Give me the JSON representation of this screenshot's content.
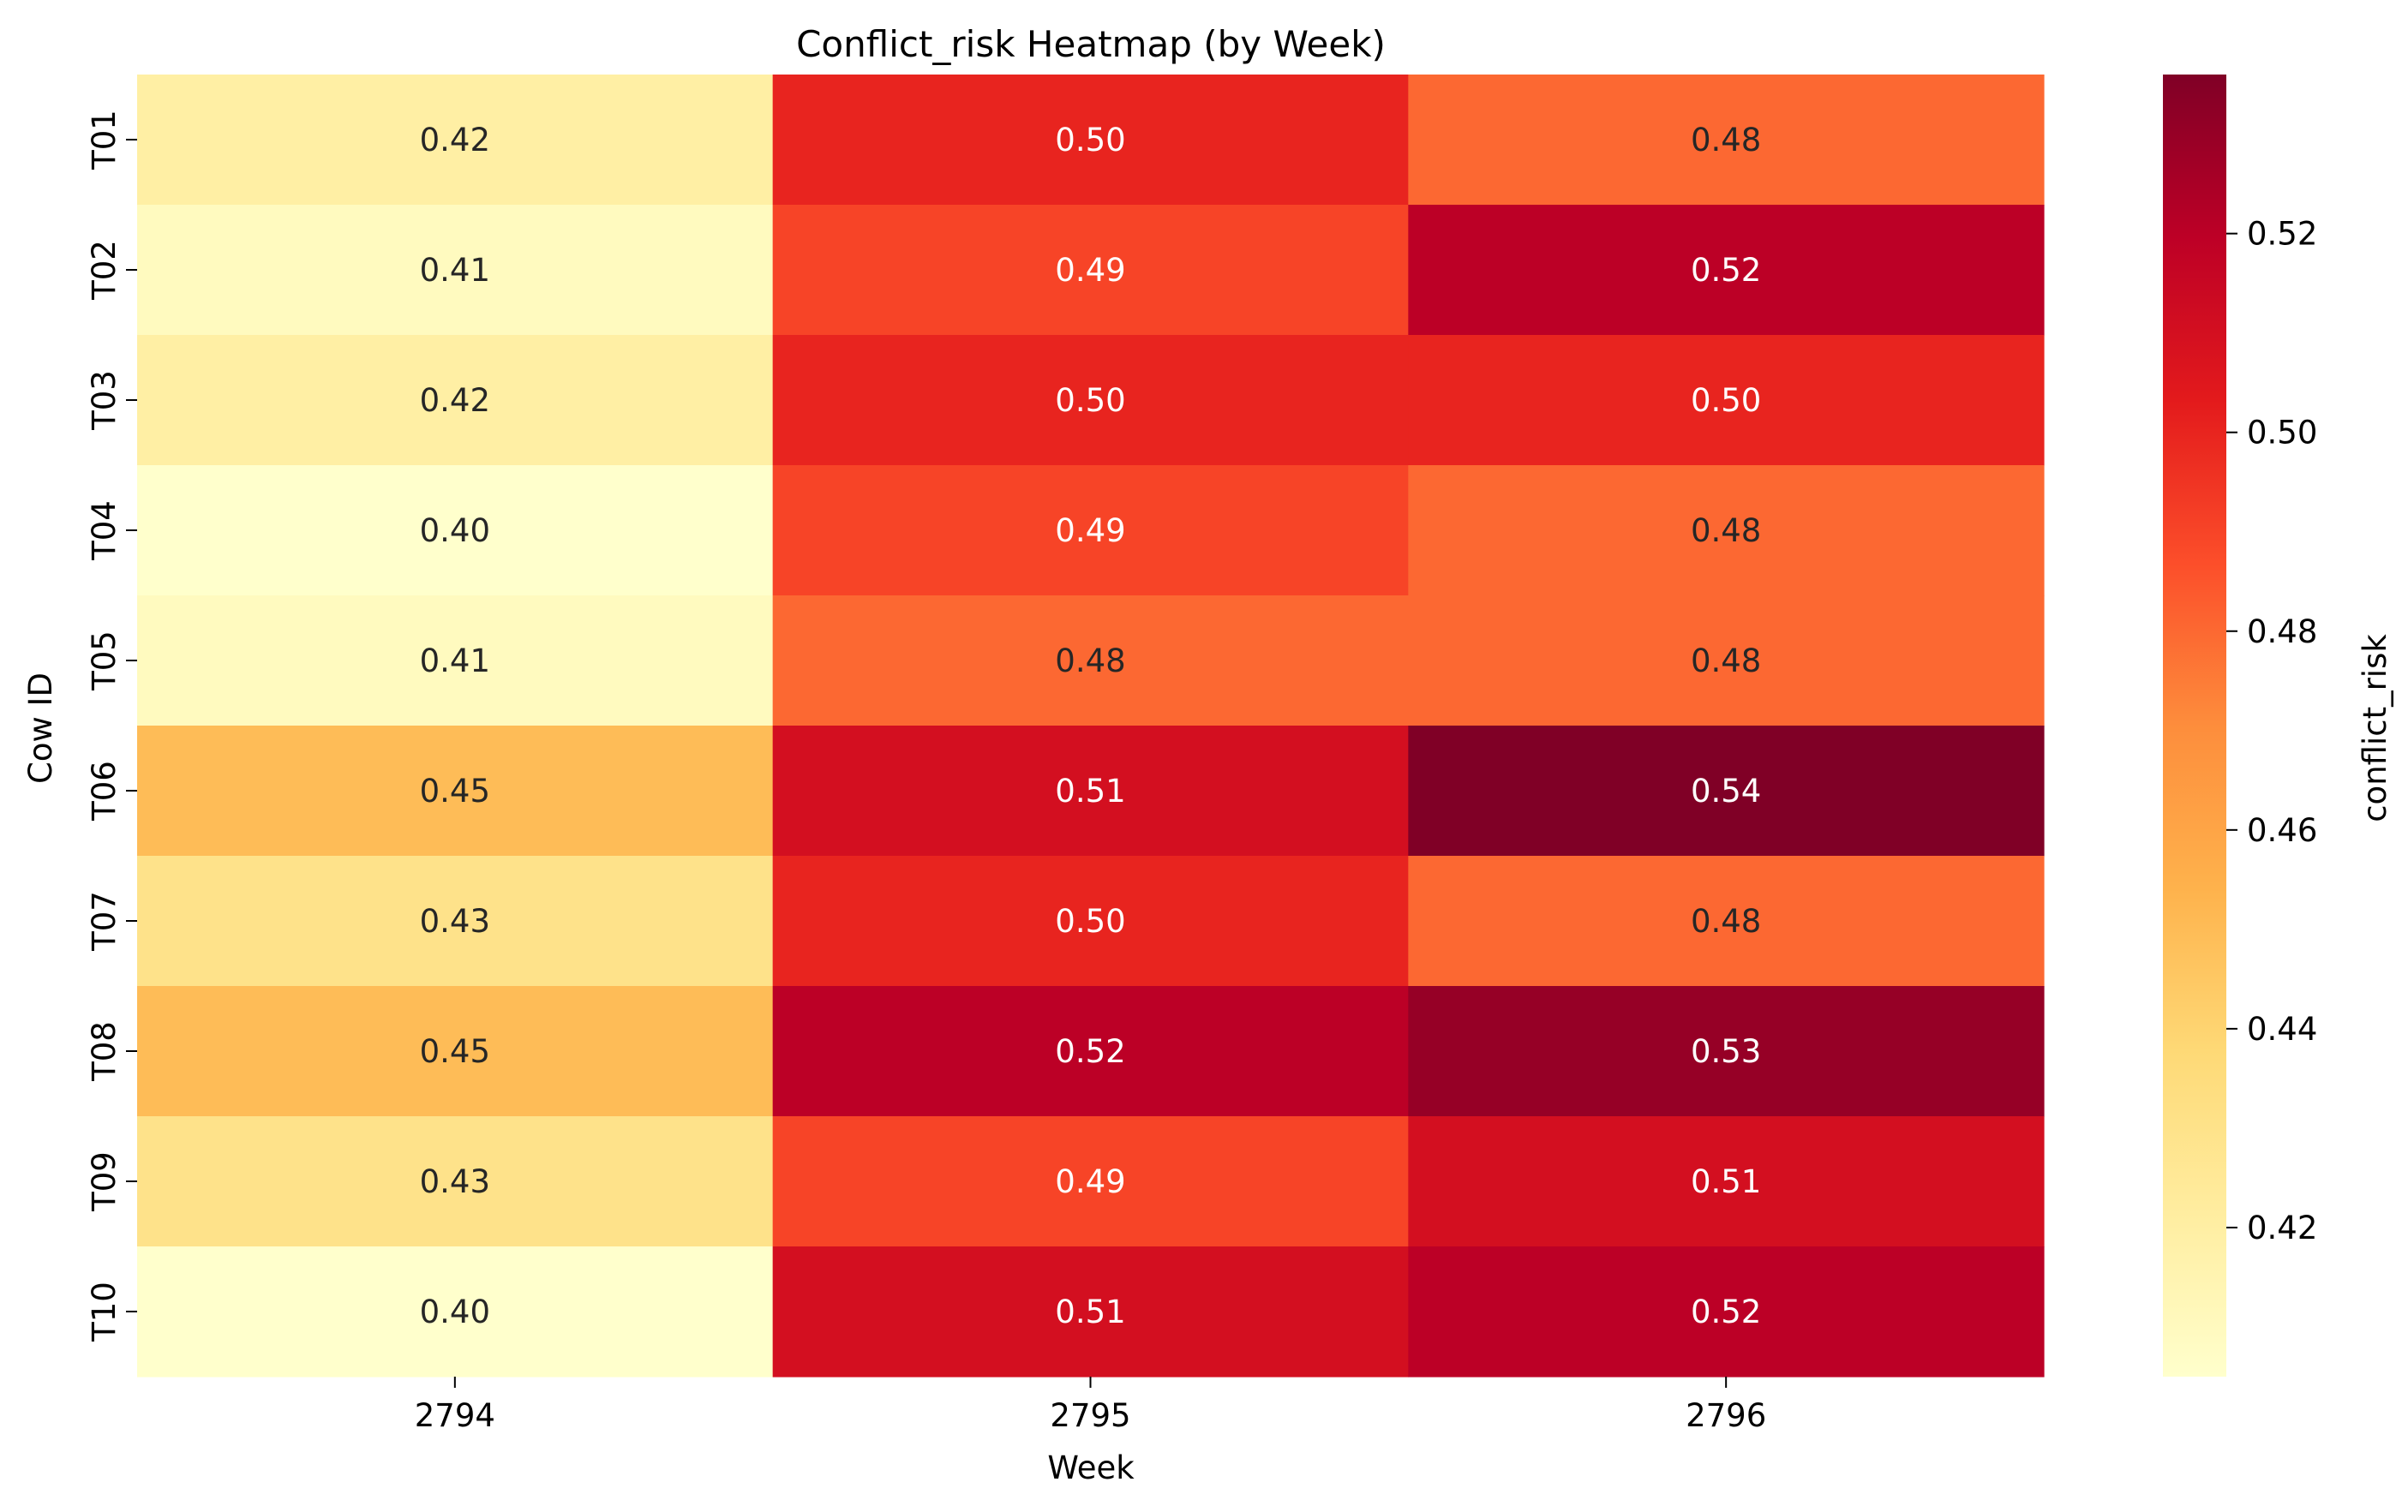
{
  "chart_data": {
    "type": "heatmap",
    "title": "Conflict_risk Heatmap (by Week)",
    "xlabel": "Week",
    "ylabel": "Cow ID",
    "x_categories": [
      "2794",
      "2795",
      "2796"
    ],
    "y_categories": [
      "T01",
      "T02",
      "T03",
      "T04",
      "T05",
      "T06",
      "T07",
      "T08",
      "T09",
      "T10"
    ],
    "values": [
      [
        0.42,
        0.5,
        0.48
      ],
      [
        0.41,
        0.49,
        0.52
      ],
      [
        0.42,
        0.5,
        0.5
      ],
      [
        0.4,
        0.49,
        0.48
      ],
      [
        0.41,
        0.48,
        0.48
      ],
      [
        0.45,
        0.51,
        0.54
      ],
      [
        0.43,
        0.5,
        0.48
      ],
      [
        0.45,
        0.52,
        0.53
      ],
      [
        0.43,
        0.49,
        0.51
      ],
      [
        0.4,
        0.51,
        0.52
      ]
    ],
    "cell_labels": [
      [
        "0.42",
        "0.50",
        "0.48"
      ],
      [
        "0.41",
        "0.49",
        "0.52"
      ],
      [
        "0.42",
        "0.50",
        "0.50"
      ],
      [
        "0.40",
        "0.49",
        "0.48"
      ],
      [
        "0.41",
        "0.48",
        "0.48"
      ],
      [
        "0.45",
        "0.51",
        "0.54"
      ],
      [
        "0.43",
        "0.50",
        "0.48"
      ],
      [
        "0.45",
        "0.52",
        "0.53"
      ],
      [
        "0.43",
        "0.49",
        "0.51"
      ],
      [
        "0.40",
        "0.51",
        "0.52"
      ]
    ],
    "colorbar": {
      "label": "conflict_risk",
      "range": [
        0.405,
        0.536
      ],
      "ticks": [
        0.42,
        0.44,
        0.46,
        0.48,
        0.5,
        0.52
      ],
      "tick_labels": [
        "0.42",
        "0.44",
        "0.46",
        "0.48",
        "0.50",
        "0.52"
      ]
    },
    "colormap": {
      "name": "YlOrRd",
      "stops": [
        "#ffffcc",
        "#ffeda0",
        "#fed976",
        "#feb24c",
        "#fd8d3c",
        "#fc4e2a",
        "#e31a1c",
        "#bd0026",
        "#800026"
      ]
    },
    "text_colors": {
      "dark": "#262626",
      "light": "#ffffff"
    }
  }
}
